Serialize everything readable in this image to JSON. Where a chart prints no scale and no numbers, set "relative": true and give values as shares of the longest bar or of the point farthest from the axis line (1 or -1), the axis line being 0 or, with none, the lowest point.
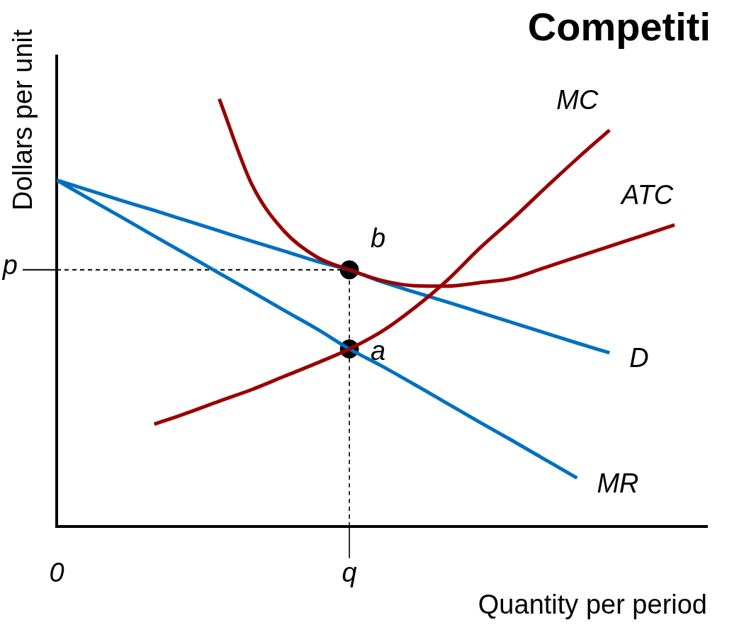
{
  "chart_data": {
    "type": "line",
    "title": "Competiti",
    "xlabel": "Quantity per period",
    "ylabel": "Dollars per unit",
    "relative": true,
    "grid": false,
    "legend": false,
    "marker": "none",
    "line_style": "solid",
    "categories": [
      "0",
      null,
      null,
      null,
      null,
      null,
      null,
      null,
      null,
      "q",
      null,
      null,
      null,
      null,
      null,
      null,
      null,
      null,
      null,
      null,
      null
    ],
    "series": [
      {
        "name": "MC",
        "color": "#990000",
        "values": [
          null,
          null,
          null,
          0.239,
          0.265,
          0.293,
          0.32,
          0.351,
          0.382,
          0.415,
          0.456,
          0.511,
          0.575,
          0.65,
          0.718,
          0.79,
          0.86,
          0.927,
          null,
          null,
          null
        ]
      },
      {
        "name": "ATC",
        "color": "#990000",
        "values": [
          null,
          null,
          null,
          null,
          null,
          1.0,
          0.8,
          0.69,
          0.63,
          0.6,
          0.575,
          0.563,
          0.562,
          0.57,
          0.58,
          0.605,
          0.63,
          0.655,
          0.68,
          0.705,
          null
        ]
      },
      {
        "name": "D",
        "color": "#0070c0",
        "values": [
          0.81,
          0.786,
          0.762,
          0.739,
          0.715,
          0.691,
          0.667,
          0.644,
          0.62,
          0.6,
          0.572,
          0.548,
          0.525,
          0.501,
          0.477,
          0.453,
          0.429,
          0.406,
          null,
          null,
          null
        ]
      },
      {
        "name": "MR",
        "color": "#0070c0",
        "values": [
          0.81,
          0.766,
          0.723,
          0.679,
          0.636,
          0.592,
          0.549,
          0.505,
          0.462,
          0.415,
          0.375,
          0.332,
          0.288,
          0.244,
          0.201,
          0.157,
          0.113,
          null,
          null,
          null,
          null
        ]
      },
      {
        "type": "line",
        "color": "#000000",
        "line_style": "dashed",
        "x": [
          "q",
          "q"
        ],
        "values": [
          0,
          0.6
        ]
      },
      {
        "type": "scatter",
        "color": "#000000",
        "marker": "circle",
        "x": [
          "q",
          "q"
        ],
        "values": [
          0.6,
          0.415
        ]
      }
    ],
    "ref_lines": [
      {
        "axis": "y",
        "value": 0.6,
        "label": "p",
        "line_style": "dashed"
      }
    ],
    "annotations": [
      {
        "text": "b",
        "x": "q",
        "y": 0.6
      },
      {
        "text": "a",
        "x": "q",
        "y": 0.415
      }
    ]
  }
}
